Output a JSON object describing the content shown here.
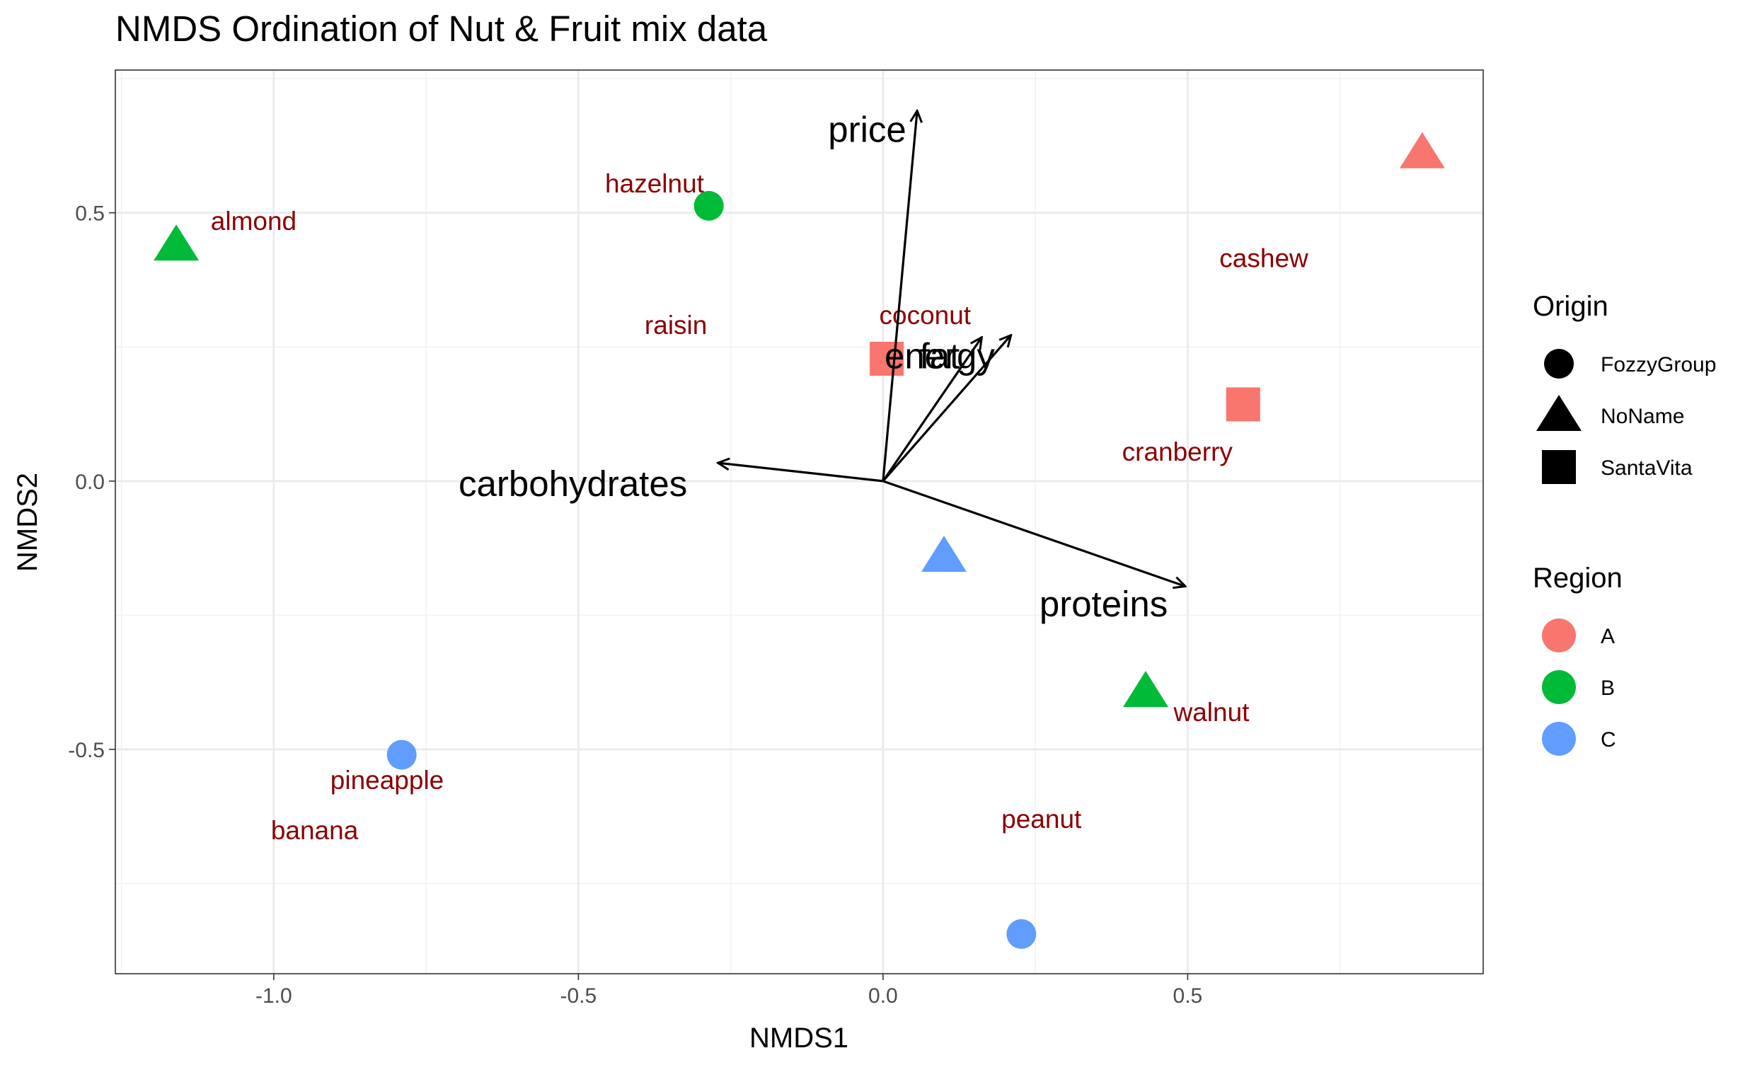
{
  "chart_data": {
    "type": "scatter",
    "title": "NMDS Ordination of Nut & Fruit mix data",
    "x_label": "NMDS1",
    "y_label": "NMDS2",
    "xlim": [
      -1.26,
      0.985
    ],
    "ylim": [
      -0.918,
      0.766
    ],
    "xticks": [
      {
        "value": -1,
        "label": "-1.0"
      },
      -0.5,
      {
        "value": 0,
        "label": "0.0"
      },
      0.5
    ],
    "yticks": [
      -0.5,
      {
        "value": 0,
        "label": "0.0"
      },
      0.5
    ],
    "grid": true,
    "points": {
      "x": [
        -1.16,
        -0.286,
        -0.79,
        0.227,
        0.1,
        0.431,
        0.006,
        0.591,
        0.885
      ],
      "y": [
        0.44,
        0.513,
        -0.51,
        -0.844,
        -0.14,
        -0.392,
        0.228,
        0.143,
        0.612
      ],
      "origin": [
        "NoName",
        "FozzyGroup",
        "FozzyGroup",
        "FozzyGroup",
        "NoName",
        "NoName",
        "SantaVita",
        "SantaVita",
        "NoName"
      ],
      "region": [
        "B",
        "B",
        "C",
        "C",
        "C",
        "B",
        "A",
        "A",
        "A"
      ]
    },
    "sample_labels": {
      "color": "#8B0000",
      "text": [
        "almond",
        "hazelnut",
        "raisin",
        "coconut",
        "cashew",
        "cranberry",
        "walnut",
        "pineapple",
        "banana",
        "peanut"
      ],
      "x": [
        -1.033,
        -0.375,
        -0.34,
        0.069,
        0.625,
        0.483,
        0.539,
        -0.814,
        -0.933,
        0.26
      ],
      "y": [
        0.485,
        0.555,
        0.291,
        0.31,
        0.416,
        0.055,
        -0.43,
        -0.557,
        -0.65,
        -0.629
      ]
    },
    "vectors": [
      {
        "name": "price",
        "x": 0.056,
        "y": 0.69,
        "label_x": -0.026,
        "label_y": 0.656
      },
      {
        "name": "energy",
        "x": 0.162,
        "y": 0.268,
        "label_x": 0.093,
        "label_y": 0.234
      },
      {
        "name": "fat",
        "x": 0.21,
        "y": 0.272,
        "label_x": 0.093,
        "label_y": 0.234
      },
      {
        "name": "carbohydrates",
        "x": -0.271,
        "y": 0.034,
        "label_x": -0.509,
        "label_y": -0.004
      },
      {
        "name": "proteins",
        "x": 0.496,
        "y": -0.196,
        "label_x": 0.362,
        "label_y": -0.228
      }
    ],
    "legends": [
      {
        "title": "Origin",
        "entries": [
          {
            "name": "FozzyGroup",
            "shape": "circle"
          },
          {
            "name": "NoName",
            "shape": "triangle"
          },
          {
            "name": "SantaVita",
            "shape": "square"
          }
        ]
      },
      {
        "title": "Region",
        "entries": [
          {
            "name": "A",
            "color": "#F8766D"
          },
          {
            "name": "B",
            "color": "#00BA38"
          },
          {
            "name": "C",
            "color": "#619CFF"
          }
        ]
      }
    ]
  }
}
